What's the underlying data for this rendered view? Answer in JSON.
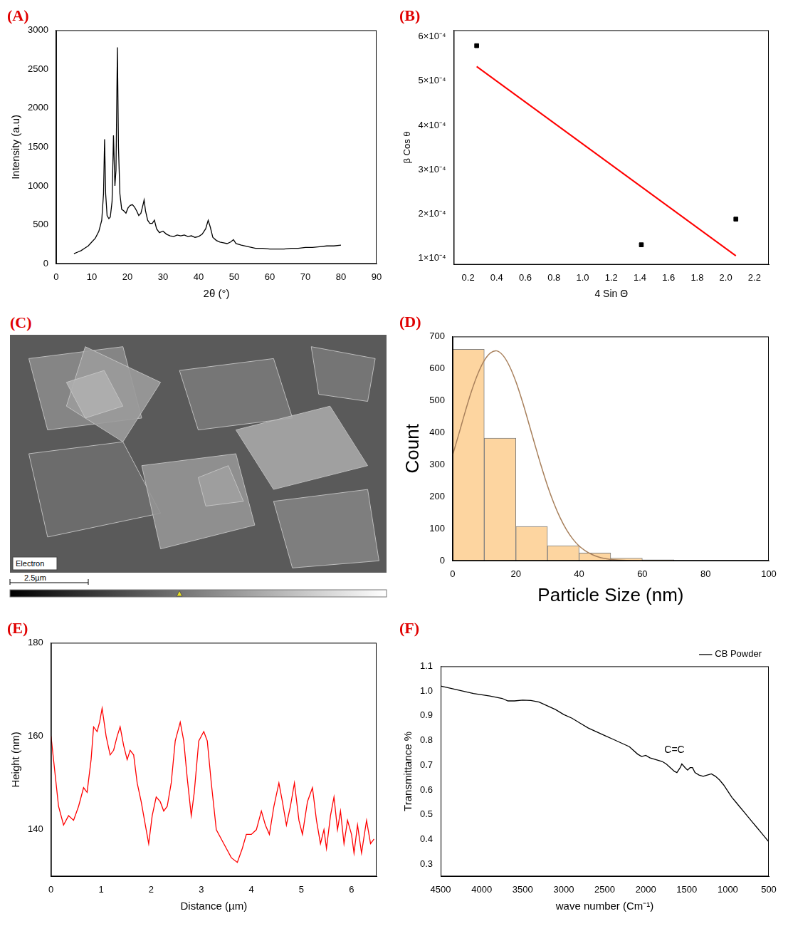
{
  "chart_data": [
    {
      "type": "line",
      "title": "(A)",
      "xlabel": "2θ (°)",
      "ylabel": "Intensity (a.u)",
      "x": [
        5,
        6,
        7,
        8,
        9,
        10,
        11,
        12,
        12.8,
        13.3,
        13.6,
        13.9,
        14.3,
        14.8,
        15.2,
        15.7,
        16.1,
        16.5,
        16.8,
        17.2,
        17.5,
        17.9,
        18.4,
        19,
        19.6,
        20.2,
        20.8,
        21.4,
        22,
        22.6,
        23.2,
        23.8,
        24.4,
        24.7,
        25.1,
        25.7,
        26.3,
        27,
        27.6,
        28.2,
        29,
        30,
        31,
        32,
        33,
        34,
        35,
        36,
        37,
        38,
        39,
        40,
        41,
        42,
        42.7,
        43.3,
        44,
        45,
        46,
        47,
        48,
        49,
        49.8,
        50.5,
        52,
        54,
        56,
        58,
        60,
        62,
        64,
        66,
        68,
        70,
        72,
        74,
        76,
        78,
        80
      ],
      "series": [
        {
          "color": "#000000",
          "values": [
            130,
            150,
            170,
            200,
            230,
            280,
            330,
            420,
            560,
            900,
            1600,
            900,
            620,
            580,
            600,
            800,
            1650,
            1000,
            1200,
            2780,
            1500,
            900,
            700,
            680,
            650,
            720,
            750,
            760,
            730,
            680,
            620,
            650,
            760,
            820,
            680,
            560,
            520,
            520,
            560,
            450,
            400,
            420,
            380,
            360,
            350,
            370,
            360,
            370,
            350,
            360,
            340,
            350,
            380,
            450,
            560,
            470,
            340,
            300,
            280,
            270,
            260,
            280,
            310,
            260,
            240,
            220,
            200,
            200,
            190,
            190,
            190,
            200,
            200,
            210,
            210,
            220,
            230,
            230,
            240
          ]
        }
      ],
      "xlim": [
        0,
        90
      ],
      "xticks": [
        0,
        10,
        20,
        30,
        40,
        50,
        60,
        70,
        80,
        90
      ],
      "ylim": [
        0,
        3000
      ],
      "yticks": [
        0,
        500,
        1000,
        1500,
        2000,
        2500,
        3000
      ],
      "grid": false
    },
    {
      "type": "scatter",
      "title": "(B)",
      "xlabel": "4 Sin Θ",
      "ylabel": "β Cos θ",
      "series": [
        {
          "type": "scatter",
          "color": "#000000",
          "marker": "square",
          "x": [
            0.26,
            1.41,
            2.07
          ],
          "values": [
            0.00058,
            0.00013,
            0.000188
          ]
        },
        {
          "type": "line",
          "color": "#ff0000",
          "x": [
            0.26,
            2.07
          ],
          "values": [
            0.000533,
            0.000105
          ]
        }
      ],
      "xlim": [
        0.1,
        2.3
      ],
      "xticks": [
        0.2,
        0.4,
        0.6,
        0.8,
        {
          "value": 1,
          "label": "1.0"
        },
        1.2,
        1.4,
        1.6,
        1.8,
        {
          "value": 2,
          "label": "2.0"
        },
        2.2
      ],
      "ylim": [
        8.5e-05,
        0.000615
      ],
      "yticks": [
        {
          "value": 0.0001,
          "label": "1×10⁻⁴"
        },
        {
          "value": 0.0002,
          "label": "2×10⁻⁴"
        },
        {
          "value": 0.0003,
          "label": "3×10⁻⁴"
        },
        {
          "value": 0.0004,
          "label": "4×10⁻⁴"
        },
        {
          "value": 0.0005,
          "label": "5×10⁻⁴"
        },
        {
          "value": 0.0006,
          "label": "6×10⁻⁴"
        }
      ],
      "grid": false
    },
    {
      "type": "image",
      "title": "(C)",
      "label": "Electron",
      "scale_bar": "2.5µm"
    },
    {
      "type": "histogram",
      "title": "(D)",
      "xlabel": "Particle Size (nm)",
      "ylabel": "Count",
      "bins": [
        0,
        10,
        20,
        30,
        40,
        50,
        60,
        70
      ],
      "counts": [
        660,
        383,
        107,
        47,
        24,
        8,
        3
      ],
      "color": "#fdd5a0",
      "curve": {
        "color": "#a8805c",
        "x": [
          0,
          2,
          4,
          6,
          8,
          10,
          12,
          14,
          16,
          18,
          20,
          22,
          24,
          26,
          28,
          30,
          32,
          34,
          36,
          38,
          40,
          42,
          44,
          46,
          48,
          50,
          55,
          60
        ],
        "values": [
          330,
          397,
          466,
          530,
          584,
          625,
          649,
          655,
          640,
          607,
          559,
          499,
          432,
          363,
          296,
          234,
          180,
          134,
          97,
          68,
          46,
          31,
          20,
          12,
          7,
          4,
          1,
          0
        ]
      },
      "xlim": [
        0,
        100
      ],
      "xticks": [
        0,
        20,
        40,
        60,
        80,
        100
      ],
      "ylim": [
        0,
        700
      ],
      "yticks": [
        0,
        100,
        200,
        300,
        400,
        500,
        600,
        700
      ],
      "grid": false
    },
    {
      "type": "line",
      "title": "(E)",
      "xlabel": "Distance (µm)",
      "ylabel": "Height (nm)",
      "x": [
        0,
        0.05,
        0.15,
        0.25,
        0.35,
        0.45,
        0.55,
        0.65,
        0.72,
        0.8,
        0.85,
        0.92,
        0.97,
        1.02,
        1.1,
        1.18,
        1.25,
        1.32,
        1.38,
        1.45,
        1.52,
        1.58,
        1.65,
        1.72,
        1.8,
        1.9,
        1.95,
        2.02,
        2.1,
        2.18,
        2.25,
        2.32,
        2.4,
        2.48,
        2.58,
        2.65,
        2.72,
        2.8,
        2.86,
        2.95,
        3.05,
        3.12,
        3.2,
        3.3,
        3.45,
        3.6,
        3.72,
        3.82,
        3.9,
        4,
        4.1,
        4.2,
        4.28,
        4.36,
        4.45,
        4.55,
        4.62,
        4.7,
        4.78,
        4.86,
        4.95,
        5.02,
        5.12,
        5.22,
        5.3,
        5.38,
        5.45,
        5.5,
        5.58,
        5.65,
        5.72,
        5.78,
        5.85,
        5.92,
        6,
        6.05,
        6.12,
        6.2,
        6.3,
        6.38,
        6.45
      ],
      "series": [
        {
          "color": "#ff0000",
          "values": [
            160,
            155,
            145,
            141,
            143,
            142,
            145,
            149,
            148,
            155,
            162,
            161,
            163,
            166,
            160,
            156,
            157,
            160,
            162,
            158,
            155,
            157,
            156,
            150,
            146,
            140,
            137,
            143,
            147,
            146,
            144,
            145,
            150,
            159,
            163,
            159,
            151,
            143,
            148,
            159,
            161,
            159,
            150,
            140,
            137,
            134,
            133,
            136,
            139,
            139,
            140,
            144,
            141,
            139,
            145,
            150,
            146,
            141,
            145,
            150,
            142,
            139,
            146,
            149,
            142,
            137,
            140,
            136,
            143,
            147,
            140,
            144,
            137,
            142,
            139,
            135,
            141,
            135,
            142,
            137,
            138
          ]
        }
      ],
      "xlim": [
        0,
        6.5
      ],
      "xticks": [
        0,
        1,
        2,
        3,
        4,
        5,
        6
      ],
      "ylim": [
        130,
        180
      ],
      "yticks": [
        140,
        160,
        180
      ],
      "grid": false
    },
    {
      "type": "line",
      "title": "(F)",
      "xlabel": "wave number (Cm⁻¹)",
      "ylabel": "Transmittance %",
      "x": [
        4500,
        4300,
        4100,
        3900,
        3750,
        3680,
        3600,
        3500,
        3400,
        3300,
        3200,
        3100,
        3000,
        2900,
        2800,
        2700,
        2600,
        2500,
        2400,
        2300,
        2200,
        2100,
        2050,
        2000,
        1950,
        1900,
        1850,
        1800,
        1750,
        1700,
        1650,
        1620,
        1580,
        1560,
        1520,
        1490,
        1460,
        1430,
        1400,
        1350,
        1300,
        1250,
        1200,
        1150,
        1100,
        1050,
        1000,
        950,
        900,
        850,
        800,
        750,
        700,
        650,
        600,
        550,
        500
      ],
      "series": [
        {
          "name": "CB Powder",
          "color": "#000000",
          "values": [
            1.02,
            1.005,
            0.99,
            0.98,
            0.97,
            0.96,
            0.96,
            0.963,
            0.962,
            0.955,
            0.94,
            0.925,
            0.905,
            0.89,
            0.87,
            0.85,
            0.835,
            0.82,
            0.805,
            0.79,
            0.775,
            0.745,
            0.735,
            0.74,
            0.73,
            0.725,
            0.72,
            0.715,
            0.705,
            0.69,
            0.675,
            0.67,
            0.69,
            0.705,
            0.69,
            0.68,
            0.69,
            0.69,
            0.67,
            0.66,
            0.655,
            0.66,
            0.665,
            0.655,
            0.64,
            0.62,
            0.595,
            0.57,
            0.55,
            0.53,
            0.51,
            0.49,
            0.47,
            0.45,
            0.43,
            0.41,
            0.39
          ]
        }
      ],
      "annotations": [
        {
          "text": "C=C",
          "x": 1650,
          "y": 0.76
        }
      ],
      "legend": "top-right",
      "xlim": [
        4500,
        500
      ],
      "xticks": [
        4500,
        4000,
        3500,
        3000,
        2500,
        2000,
        1500,
        1000,
        500
      ],
      "ylim": [
        0.25,
        1.1
      ],
      "yticks": [
        0.3,
        0.4,
        0.5,
        0.6,
        0.7,
        0.8,
        0.9,
        {
          "value": 1,
          "label": "1.0"
        },
        1.1
      ],
      "grid": false
    }
  ]
}
